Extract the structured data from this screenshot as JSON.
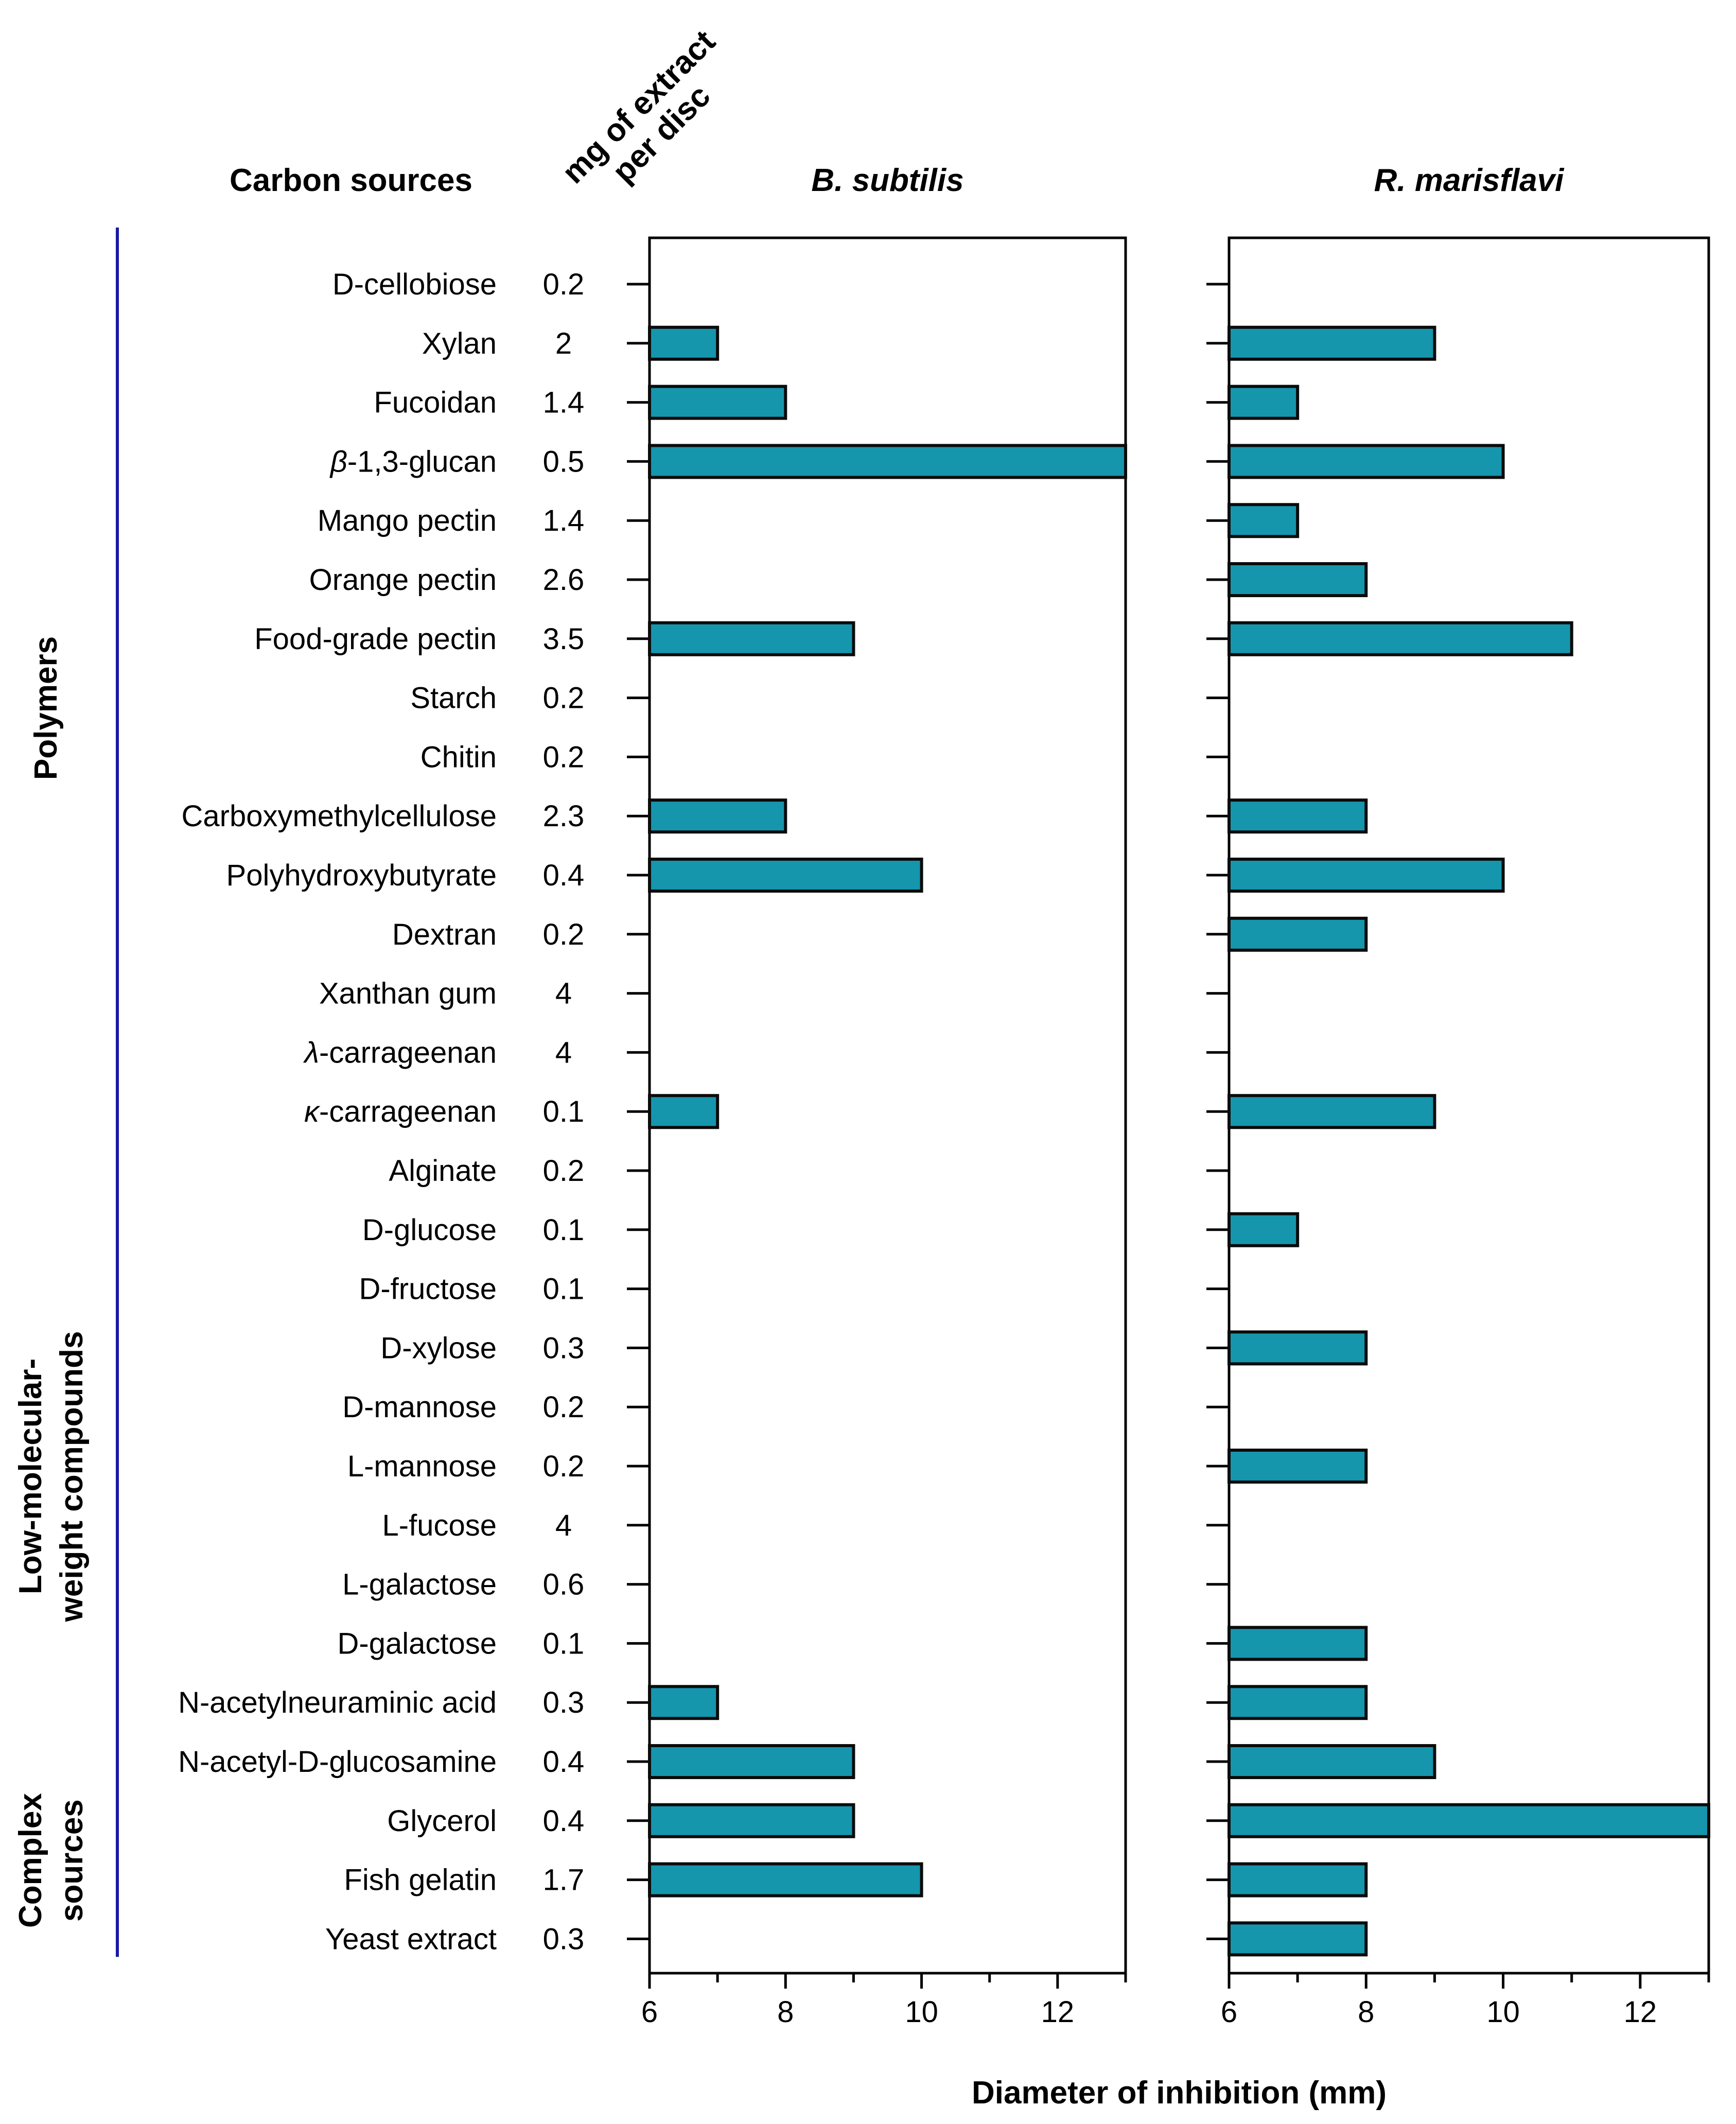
{
  "chart_data": {
    "type": "bar",
    "orientation": "horizontal",
    "headers": {
      "carbon_sources": "Carbon sources",
      "mg_line1": "mg of extract",
      "mg_line2": "per disc"
    },
    "xlabel": "Diameter of inhibition (mm)",
    "xlim": [
      6,
      13
    ],
    "xticks": [
      6,
      8,
      10,
      12
    ],
    "categories": [
      {
        "pre": "",
        "italic": "",
        "post": "D-cellobiose",
        "mg": "0.2"
      },
      {
        "pre": "",
        "italic": "",
        "post": "Xylan",
        "mg": "2"
      },
      {
        "pre": "",
        "italic": "",
        "post": "Fucoidan",
        "mg": "1.4"
      },
      {
        "pre": "",
        "italic": "β",
        "post": "-1,3-glucan",
        "mg": "0.5"
      },
      {
        "pre": "",
        "italic": "",
        "post": "Mango pectin",
        "mg": "1.4"
      },
      {
        "pre": "",
        "italic": "",
        "post": "Orange pectin",
        "mg": "2.6"
      },
      {
        "pre": "",
        "italic": "",
        "post": "Food-grade pectin",
        "mg": "3.5"
      },
      {
        "pre": "",
        "italic": "",
        "post": "Starch",
        "mg": "0.2"
      },
      {
        "pre": "",
        "italic": "",
        "post": "Chitin",
        "mg": "0.2"
      },
      {
        "pre": "",
        "italic": "",
        "post": "Carboxymethylcellulose",
        "mg": "2.3"
      },
      {
        "pre": "",
        "italic": "",
        "post": "Polyhydroxybutyrate",
        "mg": "0.4"
      },
      {
        "pre": "",
        "italic": "",
        "post": "Dextran",
        "mg": "0.2"
      },
      {
        "pre": "",
        "italic": "",
        "post": "Xanthan gum",
        "mg": "4"
      },
      {
        "pre": "",
        "italic": "λ",
        "post": "-carrageenan",
        "mg": "4"
      },
      {
        "pre": "",
        "italic": "κ",
        "post": "-carrageenan",
        "mg": "0.1"
      },
      {
        "pre": "",
        "italic": "",
        "post": "Alginate",
        "mg": "0.2"
      },
      {
        "pre": "",
        "italic": "",
        "post": "D-glucose",
        "mg": "0.1"
      },
      {
        "pre": "",
        "italic": "",
        "post": "D-fructose",
        "mg": "0.1"
      },
      {
        "pre": "",
        "italic": "",
        "post": "D-xylose",
        "mg": "0.3"
      },
      {
        "pre": "",
        "italic": "",
        "post": "D-mannose",
        "mg": "0.2"
      },
      {
        "pre": "",
        "italic": "",
        "post": "L-mannose",
        "mg": "0.2"
      },
      {
        "pre": "",
        "italic": "",
        "post": "L-fucose",
        "mg": "4"
      },
      {
        "pre": "",
        "italic": "",
        "post": "L-galactose",
        "mg": "0.6"
      },
      {
        "pre": "",
        "italic": "",
        "post": "D-galactose",
        "mg": "0.1"
      },
      {
        "pre": "",
        "italic": "",
        "post": "N-acetylneuraminic acid",
        "mg": "0.3"
      },
      {
        "pre": "",
        "italic": "",
        "post": "N-acetyl-D-glucosamine",
        "mg": "0.4"
      },
      {
        "pre": "",
        "italic": "",
        "post": "Glycerol",
        "mg": "0.4"
      },
      {
        "pre": "",
        "italic": "",
        "post": "Fish gelatin",
        "mg": "1.7"
      },
      {
        "pre": "",
        "italic": "",
        "post": "Yeast extract",
        "mg": "0.3"
      }
    ],
    "series": [
      {
        "name": "B. subtilis",
        "values": [
          null,
          7,
          8,
          13,
          null,
          null,
          9,
          null,
          null,
          8,
          10,
          null,
          null,
          null,
          7,
          null,
          null,
          null,
          null,
          null,
          null,
          null,
          null,
          null,
          7,
          9,
          9,
          10,
          null
        ]
      },
      {
        "name": "R. marisflavi",
        "values": [
          null,
          9,
          7,
          10,
          7,
          8,
          11,
          null,
          null,
          8,
          10,
          8,
          null,
          null,
          9,
          null,
          7,
          null,
          8,
          null,
          8,
          null,
          null,
          8,
          8,
          9,
          13,
          8,
          8
        ]
      }
    ],
    "groups": [
      {
        "label_lines": [
          "Polymers"
        ],
        "from": 0,
        "to": 15
      },
      {
        "label_lines": [
          "Low-molecular-",
          "weight compounds"
        ],
        "from": 16,
        "to": 25
      },
      {
        "label_lines": [
          "Complex",
          "sources"
        ],
        "from": 26,
        "to": 28
      }
    ],
    "colors": {
      "bar_fill": "#1596ad",
      "bar_edge": "#0b0b0b",
      "bracket": "#1a1aa6"
    }
  }
}
